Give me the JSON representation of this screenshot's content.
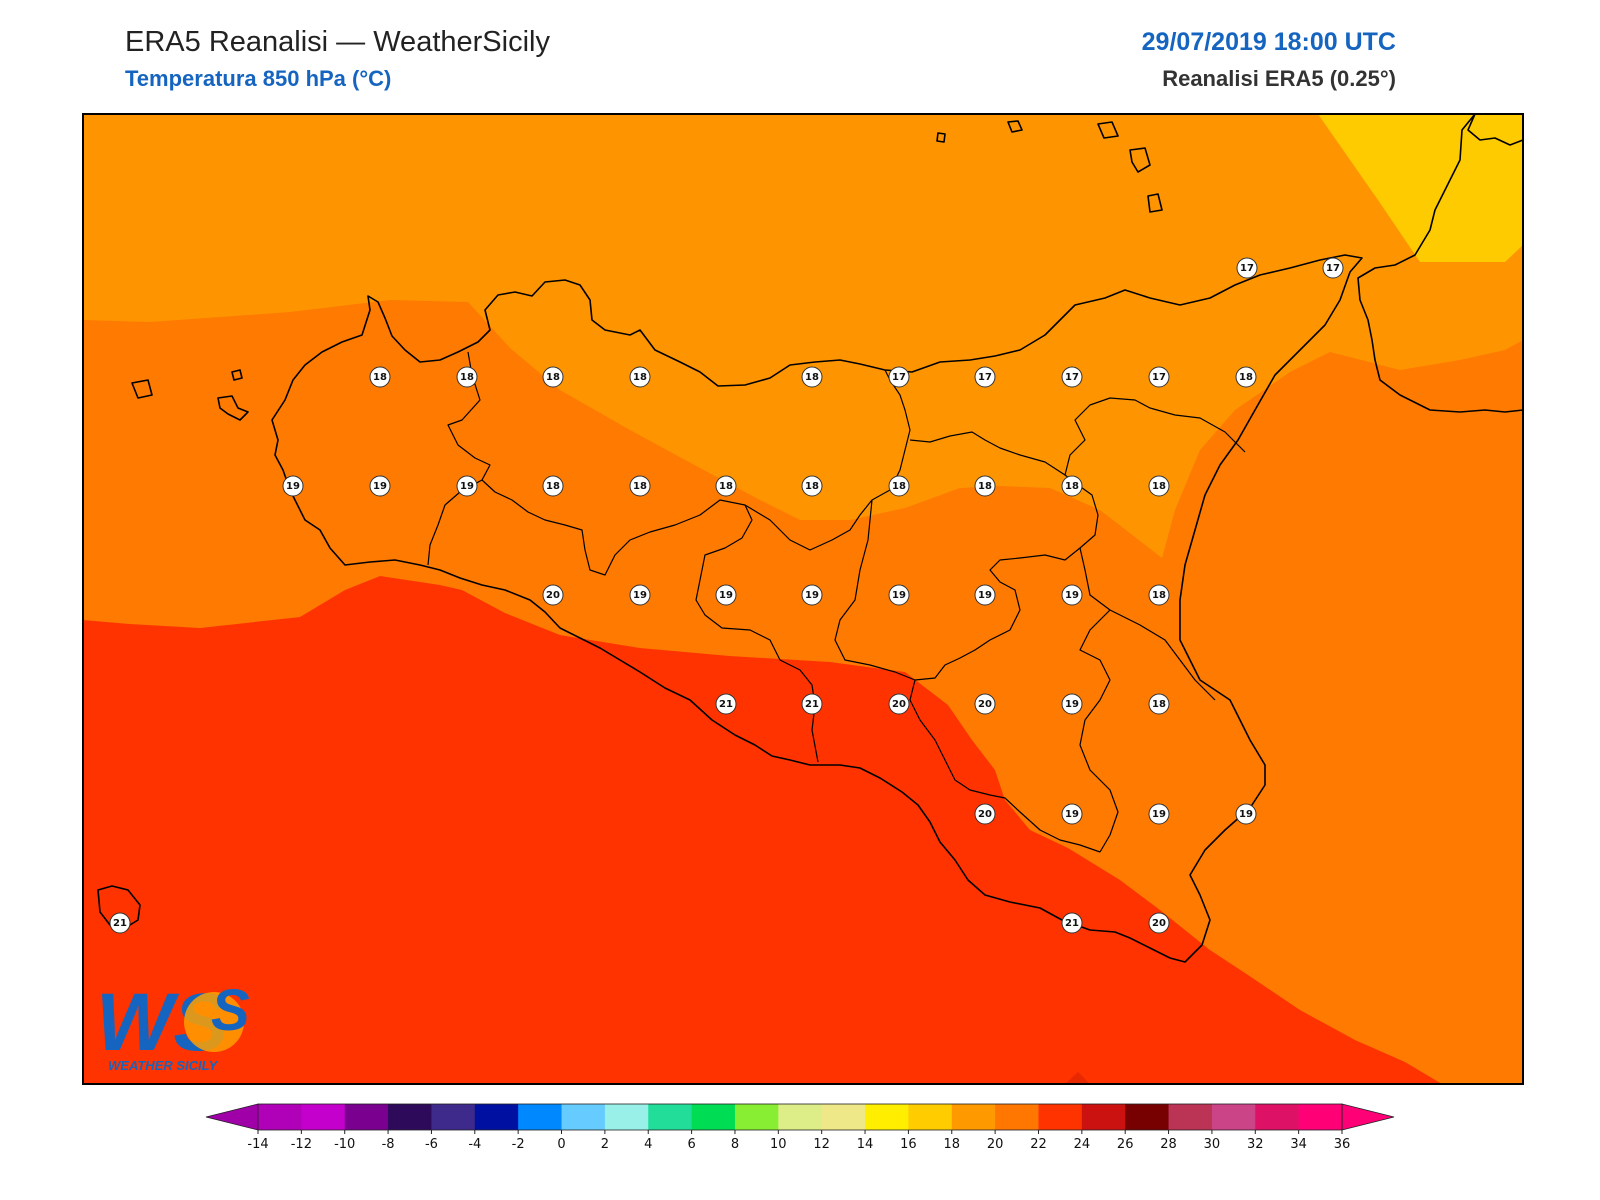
{
  "header": {
    "title": "ERA5 Reanalisi — WeatherSicily",
    "subtitle": "Temperatura 850 hPa (°C)",
    "datetime": "29/07/2019 18:00 UTC",
    "source": "Reanalisi ERA5 (0.25°)"
  },
  "logo": {
    "text": "WEATHER SICILY",
    "initials": "WS"
  },
  "colors": {
    "band_16_18": "#fe9500",
    "band_18_20": "#fe7a00",
    "band_20_22": "#fe3300",
    "band_14_16": "#fdcb00",
    "accent": "#1565c0"
  },
  "colorbar": {
    "ticks": [
      "-14",
      "-12",
      "-10",
      "-8",
      "-6",
      "-4",
      "-2",
      "0",
      "2",
      "4",
      "6",
      "8",
      "10",
      "12",
      "14",
      "16",
      "18",
      "20",
      "22",
      "24",
      "26",
      "28",
      "30",
      "32",
      "34",
      "36"
    ],
    "colors": [
      "#b000b8",
      "#c400cc",
      "#7a0090",
      "#2d0a5a",
      "#3d2a8a",
      "#0010a0",
      "#0088ff",
      "#66ccff",
      "#99f0e8",
      "#22dd99",
      "#00dd55",
      "#88ee33",
      "#ddee88",
      "#eee888",
      "#ffee00",
      "#ffcc00",
      "#ff9900",
      "#ff7700",
      "#ff3300",
      "#cc1111",
      "#770000",
      "#bb3355",
      "#cc4488",
      "#dd1166",
      "#ff0077"
    ],
    "min_arrow_color": "#a000a8",
    "max_arrow_color": "#ff0077"
  },
  "stations": [
    {
      "v": "17"
    },
    {
      "v": "17"
    },
    {
      "v": "18"
    },
    {
      "v": "18"
    },
    {
      "v": "18"
    },
    {
      "v": "18"
    },
    {
      "v": "18"
    },
    {
      "v": "17"
    },
    {
      "v": "17"
    },
    {
      "v": "17"
    },
    {
      "v": "17"
    },
    {
      "v": "18"
    },
    {
      "v": "19"
    },
    {
      "v": "19"
    },
    {
      "v": "19"
    },
    {
      "v": "18"
    },
    {
      "v": "18"
    },
    {
      "v": "18"
    },
    {
      "v": "18"
    },
    {
      "v": "18"
    },
    {
      "v": "18"
    },
    {
      "v": "18"
    },
    {
      "v": "18"
    },
    {
      "v": "20"
    },
    {
      "v": "19"
    },
    {
      "v": "19"
    },
    {
      "v": "19"
    },
    {
      "v": "19"
    },
    {
      "v": "19"
    },
    {
      "v": "19"
    },
    {
      "v": "18"
    },
    {
      "v": "21"
    },
    {
      "v": "21"
    },
    {
      "v": "20"
    },
    {
      "v": "20"
    },
    {
      "v": "19"
    },
    {
      "v": "18"
    },
    {
      "v": "20"
    },
    {
      "v": "19"
    },
    {
      "v": "19"
    },
    {
      "v": "19"
    },
    {
      "v": "21"
    },
    {
      "v": "21"
    },
    {
      "v": "20"
    }
  ]
}
